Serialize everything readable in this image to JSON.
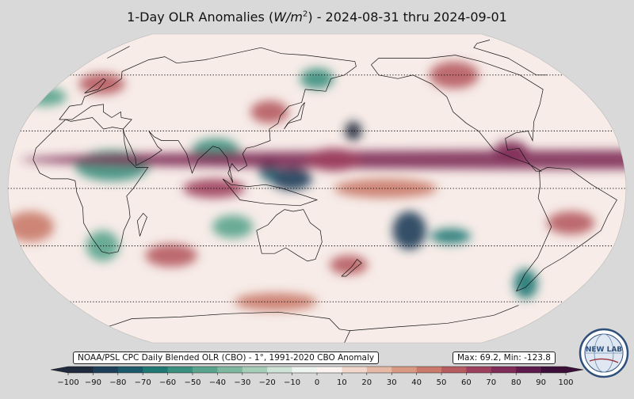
{
  "title_prefix": "1-Day OLR Anomalies (",
  "title_unit_base": "W/m",
  "title_unit_exp": "2",
  "title_suffix": ") - 2024-08-31 thru 2024-09-01",
  "source_label": "NOAA/PSL CPC Daily Blended OLR (CBO) - 1°, 1991-2020 CBO Anomaly",
  "stats_label": "Max: 69.2,  Min: -123.8",
  "logo_text": "NEW LAB",
  "map": {
    "projection": "Robinson",
    "ocean_base_color": "#f7ece8",
    "background_color": "#d9d9d9",
    "parallels_dotted": [
      "60",
      "30",
      "0",
      "-30",
      "-60"
    ]
  },
  "colorbar": {
    "ticks": [
      "−100",
      "−90",
      "−80",
      "−70",
      "−60",
      "−50",
      "−40",
      "−30",
      "−20",
      "−10",
      "0",
      "10",
      "20",
      "30",
      "40",
      "50",
      "60",
      "70",
      "80",
      "90",
      "100"
    ],
    "colors": [
      "#1f2a3c",
      "#1d3f5a",
      "#1c5a6b",
      "#1f7873",
      "#3a8f7e",
      "#5aa48d",
      "#7fb8a0",
      "#a6cdb8",
      "#cfe3d7",
      "#eef4f0",
      "#faf3ef",
      "#f1d7cc",
      "#e6b9a6",
      "#d99a84",
      "#c97a6a",
      "#b65b60",
      "#9d405e",
      "#7e2b57",
      "#5c1b4b",
      "#3b0f38"
    ]
  },
  "anomalies": [
    {
      "lon": 135,
      "lat": 5,
      "rx": 12,
      "ry": 6,
      "type": "neg",
      "level": 0.9
    },
    {
      "lon": 172,
      "lat": 30,
      "rx": 5,
      "ry": 5,
      "type": "neg",
      "level": 0.95
    },
    {
      "lon": 122,
      "lat": 10,
      "rx": 6,
      "ry": 6,
      "type": "neg",
      "level": 0.8
    },
    {
      "lon": 90,
      "lat": 20,
      "rx": 14,
      "ry": 6,
      "type": "neg",
      "level": 0.6
    },
    {
      "lon": 30,
      "lat": 12,
      "rx": 22,
      "ry": 8,
      "type": "neg",
      "level": 0.55
    },
    {
      "lon": -155,
      "lat": -22,
      "rx": 10,
      "ry": 10,
      "type": "neg",
      "level": 0.85
    },
    {
      "lon": -130,
      "lat": -25,
      "rx": 12,
      "ry": 4,
      "type": "neg",
      "level": 0.7
    },
    {
      "lon": -30,
      "lat": 48,
      "rx": 14,
      "ry": 5,
      "type": "neg",
      "level": 0.5
    },
    {
      "lon": 150,
      "lat": 58,
      "rx": 12,
      "ry": 6,
      "type": "neg",
      "level": 0.6
    },
    {
      "lon": -70,
      "lat": -50,
      "rx": 8,
      "ry": 8,
      "type": "neg",
      "level": 0.7
    },
    {
      "lon": -60,
      "lat": -18,
      "rx": 14,
      "ry": 6,
      "type": "pos",
      "level": 0.6
    },
    {
      "lon": -40,
      "lat": 15,
      "rx": 16,
      "ry": 5,
      "type": "pos",
      "level": 0.75
    },
    {
      "lon": 90,
      "lat": 0,
      "rx": 18,
      "ry": 5,
      "type": "pos",
      "level": 0.65
    },
    {
      "lon": 160,
      "lat": 15,
      "rx": 16,
      "ry": 6,
      "type": "pos",
      "level": 0.7
    },
    {
      "lon": -170,
      "lat": 0,
      "rx": 30,
      "ry": 5,
      "type": "pos",
      "level": 0.45
    },
    {
      "lon": 60,
      "lat": -35,
      "rx": 16,
      "ry": 6,
      "type": "pos",
      "level": 0.55
    },
    {
      "lon": 120,
      "lat": 40,
      "rx": 12,
      "ry": 6,
      "type": "pos",
      "level": 0.6
    },
    {
      "lon": -110,
      "lat": 60,
      "rx": 18,
      "ry": 8,
      "type": "pos",
      "level": 0.5
    },
    {
      "lon": 0,
      "lat": 55,
      "rx": 16,
      "ry": 6,
      "type": "pos",
      "level": 0.5
    },
    {
      "lon": -20,
      "lat": -20,
      "rx": 14,
      "ry": 8,
      "type": "pos",
      "level": 0.45
    },
    {
      "lon": 120,
      "lat": -60,
      "rx": 30,
      "ry": 5,
      "type": "pos",
      "level": 0.4
    },
    {
      "lon": 100,
      "lat": -20,
      "rx": 12,
      "ry": 6,
      "type": "neg",
      "level": 0.45
    },
    {
      "lon": -95,
      "lat": 20,
      "rx": 10,
      "ry": 5,
      "type": "pos",
      "level": 0.8
    },
    {
      "lon": 170,
      "lat": -40,
      "rx": 12,
      "ry": 5,
      "type": "pos",
      "level": 0.55
    },
    {
      "lon": 20,
      "lat": -30,
      "rx": 10,
      "ry": 8,
      "type": "neg",
      "level": 0.4
    }
  ]
}
